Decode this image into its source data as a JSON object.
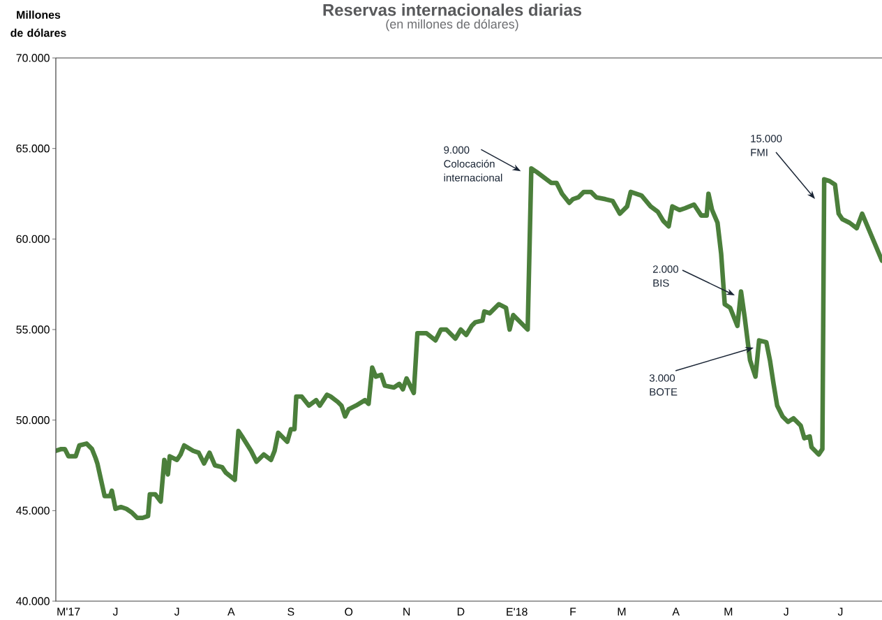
{
  "chart_data": {
    "type": "line",
    "title": "Reservas internacionales diarias",
    "subtitle": "(en millones de dólares)",
    "ylabel": "Millones de dólares",
    "color": "#4b7f3b",
    "xlim": [
      "2017-04-24",
      "2018-07-25"
    ],
    "ylim": [
      40000,
      70000
    ],
    "yticks": [
      {
        "value": 40000,
        "label": "40.000"
      },
      {
        "value": 45000,
        "label": "45.000"
      },
      {
        "value": 50000,
        "label": "50.000"
      },
      {
        "value": 55000,
        "label": "55.000"
      },
      {
        "value": 60000,
        "label": "60.000"
      },
      {
        "value": 65000,
        "label": "65.000"
      },
      {
        "value": 70000,
        "label": "70.000"
      }
    ],
    "xticks": [
      {
        "value": "2017-05-01",
        "label": "M'17"
      },
      {
        "value": "2017-05-27",
        "label": "J"
      },
      {
        "value": "2017-06-30",
        "label": "J"
      },
      {
        "value": "2017-07-30",
        "label": "A"
      },
      {
        "value": "2017-09-01",
        "label": "S"
      },
      {
        "value": "2017-10-03",
        "label": "O"
      },
      {
        "value": "2017-11-04",
        "label": "N"
      },
      {
        "value": "2017-12-04",
        "label": "D"
      },
      {
        "value": "2018-01-04",
        "label": "E'18"
      },
      {
        "value": "2018-02-04",
        "label": "F"
      },
      {
        "value": "2018-03-03",
        "label": "M"
      },
      {
        "value": "2018-04-02",
        "label": "A"
      },
      {
        "value": "2018-05-01",
        "label": "M"
      },
      {
        "value": "2018-06-02",
        "label": "J"
      },
      {
        "value": "2018-07-02",
        "label": "J"
      }
    ],
    "x": [
      "2017-04-24",
      "2017-04-27",
      "2017-04-29",
      "2017-05-01",
      "2017-05-05",
      "2017-05-07",
      "2017-05-11",
      "2017-05-14",
      "2017-05-16",
      "2017-05-17",
      "2017-05-19",
      "2017-05-21",
      "2017-05-24",
      "2017-05-25",
      "2017-05-27",
      "2017-05-30",
      "2017-06-02",
      "2017-06-05",
      "2017-06-08",
      "2017-06-11",
      "2017-06-14",
      "2017-06-15",
      "2017-06-18",
      "2017-06-21",
      "2017-06-23",
      "2017-06-25",
      "2017-06-26",
      "2017-06-30",
      "2017-07-02",
      "2017-07-04",
      "2017-07-09",
      "2017-07-12",
      "2017-07-15",
      "2017-07-18",
      "2017-07-21",
      "2017-07-25",
      "2017-07-27",
      "2017-08-01",
      "2017-08-03",
      "2017-08-05",
      "2017-08-10",
      "2017-08-13",
      "2017-08-17",
      "2017-08-21",
      "2017-08-23",
      "2017-08-25",
      "2017-08-30",
      "2017-09-01",
      "2017-09-03",
      "2017-09-04",
      "2017-09-07",
      "2017-09-11",
      "2017-09-15",
      "2017-09-17",
      "2017-09-21",
      "2017-09-23",
      "2017-09-27",
      "2017-09-29",
      "2017-10-01",
      "2017-10-03",
      "2017-10-07",
      "2017-10-12",
      "2017-10-14",
      "2017-10-16",
      "2017-10-18",
      "2017-10-21",
      "2017-10-23",
      "2017-10-28",
      "2017-10-31",
      "2017-11-02",
      "2017-11-04",
      "2017-11-08",
      "2017-11-10",
      "2017-11-15",
      "2017-11-20",
      "2017-11-23",
      "2017-11-26",
      "2017-12-01",
      "2017-12-04",
      "2017-12-07",
      "2017-12-10",
      "2017-12-12",
      "2017-12-16",
      "2017-12-17",
      "2017-12-20",
      "2017-12-25",
      "2017-12-29",
      "2017-12-31",
      "2018-01-02",
      "2018-01-05",
      "2018-01-10",
      "2018-01-12",
      "2018-01-15",
      "2018-01-19",
      "2018-01-23",
      "2018-01-26",
      "2018-01-29",
      "2018-02-02",
      "2018-02-04",
      "2018-02-07",
      "2018-02-10",
      "2018-02-14",
      "2018-02-17",
      "2018-02-22",
      "2018-02-26",
      "2018-03-02",
      "2018-03-06",
      "2018-03-08",
      "2018-03-14",
      "2018-03-19",
      "2018-03-23",
      "2018-03-26",
      "2018-03-29",
      "2018-03-31",
      "2018-04-04",
      "2018-04-07",
      "2018-04-12",
      "2018-04-16",
      "2018-04-19",
      "2018-04-20",
      "2018-04-22",
      "2018-04-25",
      "2018-04-27",
      "2018-04-29",
      "2018-05-02",
      "2018-05-06",
      "2018-05-08",
      "2018-05-10",
      "2018-05-13",
      "2018-05-16",
      "2018-05-18",
      "2018-05-22",
      "2018-05-24",
      "2018-05-26",
      "2018-05-28",
      "2018-05-31",
      "2018-06-03",
      "2018-06-06",
      "2018-06-10",
      "2018-06-12",
      "2018-06-15",
      "2018-06-16",
      "2018-06-20",
      "2018-06-22",
      "2018-06-23",
      "2018-06-26",
      "2018-06-29",
      "2018-07-01",
      "2018-07-03",
      "2018-07-07",
      "2018-07-11",
      "2018-07-14",
      "2018-07-25"
    ],
    "values": [
      48300,
      48400,
      48400,
      48000,
      48000,
      48600,
      48700,
      48400,
      47900,
      47600,
      46700,
      45800,
      45800,
      46100,
      45100,
      45200,
      45100,
      44900,
      44600,
      44600,
      44700,
      45900,
      45900,
      45500,
      47800,
      47000,
      48000,
      47800,
      48100,
      48600,
      48300,
      48200,
      47600,
      48200,
      47500,
      47400,
      47100,
      46700,
      49400,
      49100,
      48300,
      47700,
      48100,
      47800,
      48300,
      49300,
      48800,
      49500,
      49500,
      51300,
      51300,
      50800,
      51100,
      50800,
      51400,
      51300,
      51000,
      50800,
      50200,
      50600,
      50800,
      51100,
      50900,
      52900,
      52400,
      52500,
      51900,
      51800,
      52000,
      51700,
      52300,
      51500,
      54800,
      54800,
      54400,
      55000,
      55000,
      54500,
      55000,
      54700,
      55200,
      55400,
      55500,
      56000,
      55900,
      56400,
      56200,
      55000,
      55800,
      55500,
      55000,
      63900,
      63700,
      63400,
      63100,
      63100,
      62500,
      62000,
      62200,
      62300,
      62600,
      62600,
      62300,
      62200,
      62100,
      61400,
      61800,
      62600,
      62400,
      61800,
      61500,
      61000,
      60700,
      61800,
      61600,
      61700,
      61900,
      61300,
      61300,
      62500,
      61600,
      60900,
      59200,
      56400,
      56200,
      55200,
      57100,
      55700,
      53300,
      52400,
      54400,
      54300,
      53300,
      52000,
      50800,
      50200,
      49900,
      50100,
      49700,
      49000,
      49100,
      48500,
      48100,
      48400,
      63300,
      63200,
      63000,
      61400,
      61100,
      60900,
      60600,
      61400,
      58800
    ],
    "annotations": [
      {
        "text": "9.000 Colocación internacional",
        "x": "2018-01-12",
        "y": 63900
      },
      "2.000 BIS",
      {
        "text": "3.000 BOTE",
        "x": "2018-05-15",
        "y": 54000
      },
      "15.000 FMI"
    ]
  }
}
